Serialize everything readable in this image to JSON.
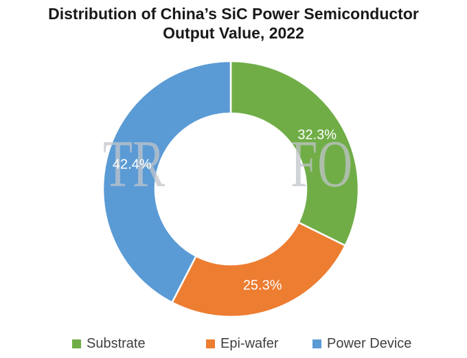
{
  "title": {
    "line1": "Distribution of China’s SiC Power Semiconductor",
    "line2": "Output Value, 2022"
  },
  "watermark": {
    "full_text": "TRENDFORCE",
    "visible_left": "TR",
    "visible_right": "FO",
    "color": "rgba(192,196,202,0.75)"
  },
  "chart_data": {
    "type": "pie",
    "subtype": "donut",
    "title": "Distribution of China’s SiC Power Semiconductor Output Value, 2022",
    "unit": "%",
    "start_angle_deg": 0,
    "direction": "clockwise",
    "hole_ratio": 0.59,
    "categories": [
      "Substrate",
      "Epi-wafer",
      "Power Device"
    ],
    "values": [
      32.3,
      25.3,
      42.4
    ],
    "labels": [
      "32.3%",
      "25.3%",
      "42.4%"
    ],
    "colors": [
      "#70AD47",
      "#ED7D31",
      "#5B9BD5"
    ],
    "label_color": "#ffffff",
    "slice_border_color": "#ffffff",
    "legend_position": "bottom",
    "grid": false
  },
  "legend": {
    "items": [
      {
        "label": "Substrate",
        "color": "#70AD47"
      },
      {
        "label": "Epi-wafer",
        "color": "#ED7D31"
      },
      {
        "label": "Power Device",
        "color": "#5B9BD5"
      }
    ]
  }
}
